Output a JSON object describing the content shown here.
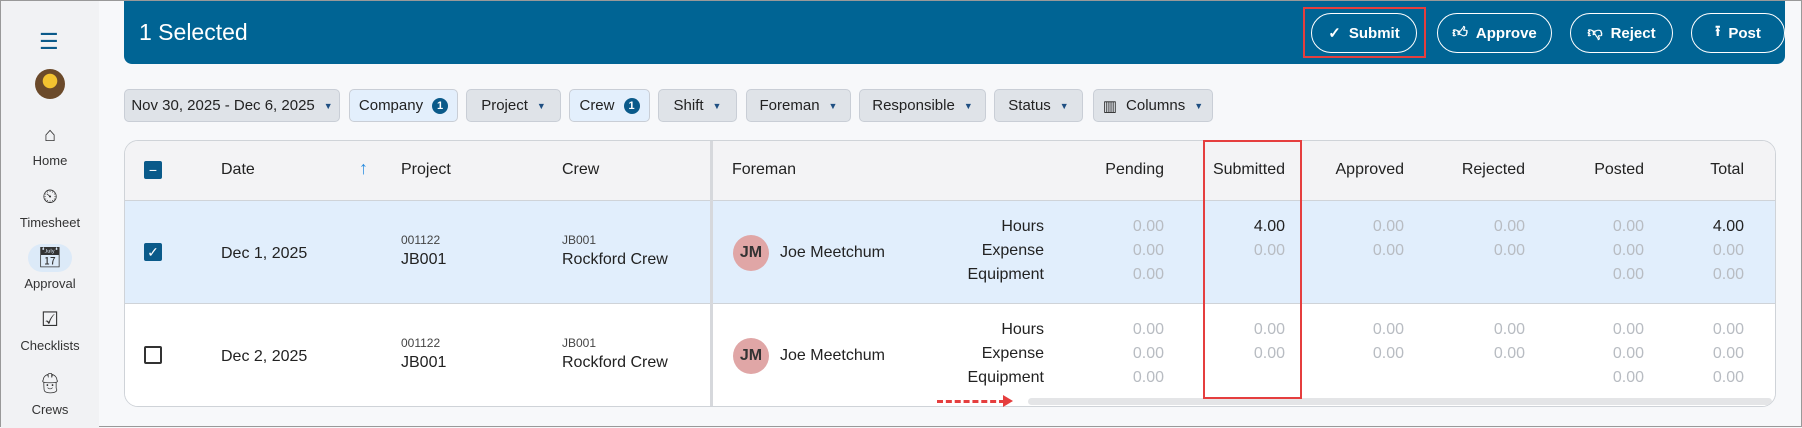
{
  "sidebar": {
    "items": [
      {
        "label": "Home",
        "icon": "home-icon"
      },
      {
        "label": "Timesheet",
        "icon": "timesheet-icon"
      },
      {
        "label": "Approval",
        "icon": "approval-icon",
        "active": true
      },
      {
        "label": "Checklists",
        "icon": "checklist-icon"
      },
      {
        "label": "Crews",
        "icon": "crews-icon"
      }
    ]
  },
  "header": {
    "title": "1 Selected",
    "buttons": {
      "submit": "Submit",
      "approve": "Approve",
      "reject": "Reject",
      "post": "Post"
    }
  },
  "filters": {
    "date": "Nov 30, 2025 - Dec 6, 2025",
    "company": "Company",
    "company_count": "1",
    "project": "Project",
    "crew": "Crew",
    "crew_count": "1",
    "shift": "Shift",
    "foreman": "Foreman",
    "responsible": "Responsible",
    "status": "Status",
    "columns": "Columns"
  },
  "table": {
    "columns": {
      "date": "Date",
      "project": "Project",
      "crew": "Crew",
      "foreman": "Foreman",
      "pending": "Pending",
      "submitted": "Submitted",
      "approved": "Approved",
      "rejected": "Rejected",
      "posted": "Posted",
      "total": "Total"
    },
    "metric_labels": [
      "Hours",
      "Expense",
      "Equipment"
    ],
    "rows": [
      {
        "selected": true,
        "date": "Dec 1, 2025",
        "project_code": "001122",
        "project": "JB001",
        "crew_code": "JB001",
        "crew": "Rockford Crew",
        "initials": "JM",
        "foreman": "Joe Meetchum",
        "pending": [
          "0.00",
          "0.00",
          "0.00"
        ],
        "submitted": [
          "4.00",
          "0.00",
          ""
        ],
        "approved": [
          "0.00",
          "0.00",
          ""
        ],
        "rejected": [
          "0.00",
          "0.00",
          ""
        ],
        "posted": [
          "0.00",
          "0.00",
          "0.00"
        ],
        "total": [
          "4.00",
          "0.00",
          "0.00"
        ]
      },
      {
        "selected": false,
        "date": "Dec 2, 2025",
        "project_code": "001122",
        "project": "JB001",
        "crew_code": "JB001",
        "crew": "Rockford Crew",
        "initials": "JM",
        "foreman": "Joe Meetchum",
        "pending": [
          "0.00",
          "0.00",
          "0.00"
        ],
        "submitted": [
          "0.00",
          "0.00",
          ""
        ],
        "approved": [
          "0.00",
          "0.00",
          ""
        ],
        "rejected": [
          "0.00",
          "0.00",
          ""
        ],
        "posted": [
          "0.00",
          "0.00",
          "0.00"
        ],
        "total": [
          "0.00",
          "0.00",
          "0.00"
        ]
      }
    ]
  },
  "colors": {
    "header": "#006494",
    "highlight": "#e53e3e",
    "selected_row": "#e1eefc"
  }
}
